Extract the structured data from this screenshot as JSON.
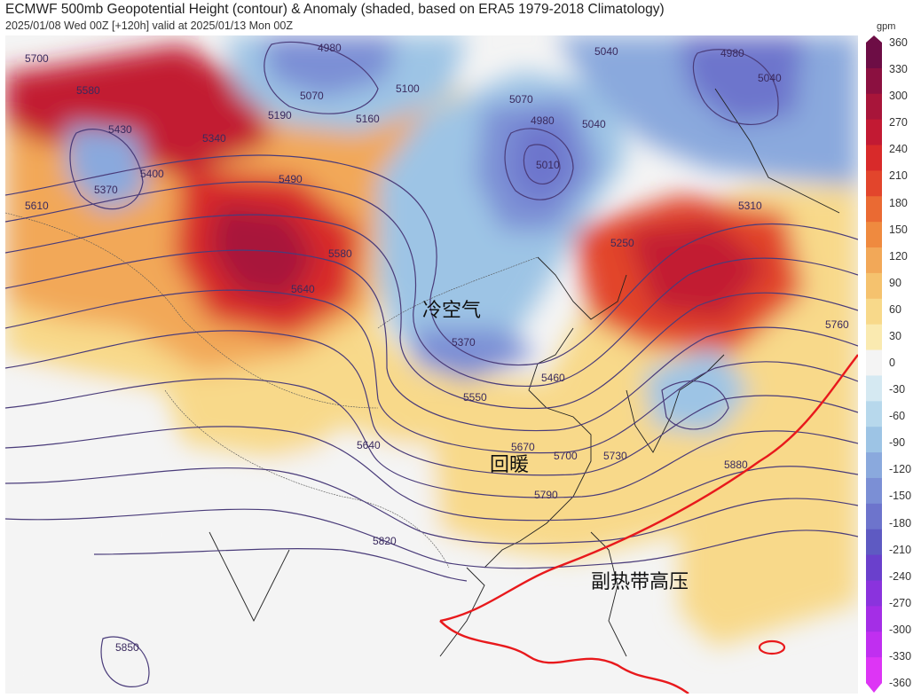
{
  "header": {
    "title": "ECMWF 500mb Geopotential Height (contour) & Anomaly (shaded, based on ERA5 1979-2018 Climatology)",
    "subtitle": "2025/01/08 Wed 00Z [+120h] valid at 2025/01/13 Mon 00Z"
  },
  "colorbar": {
    "unit": "gpm",
    "ticks": [
      "360",
      "330",
      "300",
      "270",
      "240",
      "210",
      "180",
      "150",
      "120",
      "90",
      "60",
      "30",
      "0",
      "-30",
      "-60",
      "-90",
      "-120",
      "-150",
      "-180",
      "-210",
      "-240",
      "-270",
      "-300",
      "-330",
      "-360"
    ],
    "colors": [
      "#6d0d45",
      "#8b1040",
      "#a8153a",
      "#c21a33",
      "#d82a2a",
      "#e2452c",
      "#ea6a33",
      "#ef8a3f",
      "#f2a858",
      "#f5c26e",
      "#f8d98a",
      "#faeab0",
      "#f4f4f4",
      "#d5e9f2",
      "#b7d8ec",
      "#9dc4e5",
      "#8aa9dd",
      "#7b8fd5",
      "#6d74cc",
      "#5e5ac2",
      "#6a40cc",
      "#8a33dd",
      "#a42ee6",
      "#c02ff0",
      "#dd35f5"
    ]
  },
  "contour_labels": [
    "5700",
    "4980",
    "5070",
    "5100",
    "5160",
    "5190",
    "5580",
    "5430",
    "5400",
    "5370",
    "5610",
    "5490",
    "5340",
    "5580",
    "5640",
    "4980",
    "5010",
    "5040",
    "5070",
    "5040",
    "4980",
    "5040",
    "5310",
    "5250",
    "5760",
    "5370",
    "5460",
    "5550",
    "5640",
    "5670",
    "5700",
    "5730",
    "5790",
    "5820",
    "5850",
    "5880"
  ],
  "annotations": {
    "cold_air": "冷空气",
    "warming": "回暖",
    "subtropical_high": "副热带高压"
  }
}
